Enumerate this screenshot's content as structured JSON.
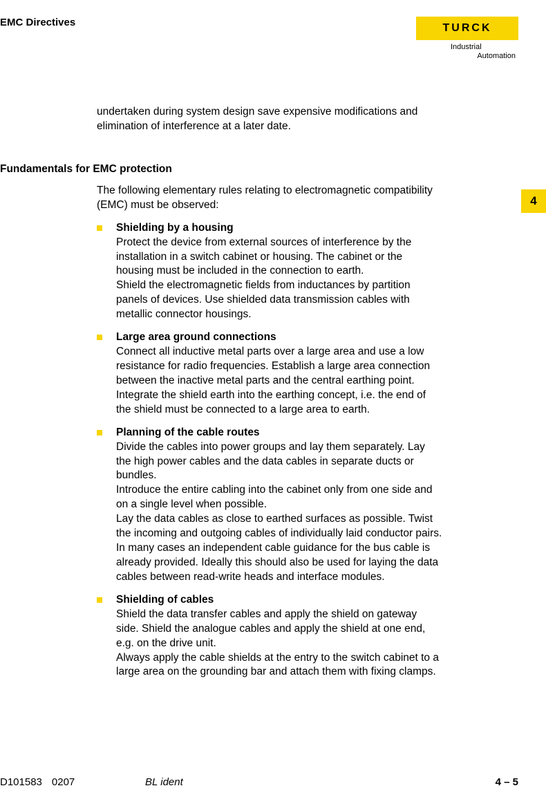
{
  "header": {
    "title": "EMC Directives"
  },
  "logo": {
    "brand": "TURCK",
    "sub1": "Industrial",
    "sub2": "Automation"
  },
  "sideTab": "4",
  "intro": "undertaken during system design save expensive modifications and elimination of interference at a later date.",
  "section": {
    "heading": "Fundamentals for EMC protection",
    "lead": "The following elementary rules relating to electromagnetic compatibility (EMC) must be observed:",
    "items": [
      {
        "title": "Shielding by a housing",
        "body": "Protect the device from external sources of interference by the installation in a switch cabinet or housing. The cabinet or the housing must be included in the connection to earth.\nShield the electromagnetic fields from inductances by partition panels of devices. Use shielded data transmission cables with metallic connector housings."
      },
      {
        "title": "Large area ground connections",
        "body": "Connect all inductive metal parts over a large area and use a low resistance for radio frequencies. Establish a large area connection between the inactive metal parts and the central earthing point.\nIntegrate the shield earth into the earthing concept, i.e. the end of the shield must be connected to a large area to earth."
      },
      {
        "title": "Planning of the cable routes",
        "body": "Divide the cables into power groups and lay them separately. Lay the high power cables and the data cables in separate ducts or bundles.\nIntroduce the entire cabling into the cabinet only from one side and on a single level when possible.\nLay the data cables as close to earthed surfaces as possible. Twist the incoming and outgoing cables of individually laid conductor pairs.\nIn many cases an independent cable guidance for the bus cable is already provided. Ideally this should also be used for laying the data cables between read-write heads and interface modules."
      },
      {
        "title": "Shielding of cables",
        "body": "Shield the data transfer cables and apply the shield on gateway side. Shield the analogue cables and apply the shield at one end, e.g. on the drive unit.\nAlways apply the cable shields at the entry to the switch cabinet to a large area on the grounding bar and attach them with fixing clamps."
      }
    ]
  },
  "footer": {
    "doc": "D101583",
    "rev": "0207",
    "mid": "BL ident",
    "page": "4 – 5"
  }
}
